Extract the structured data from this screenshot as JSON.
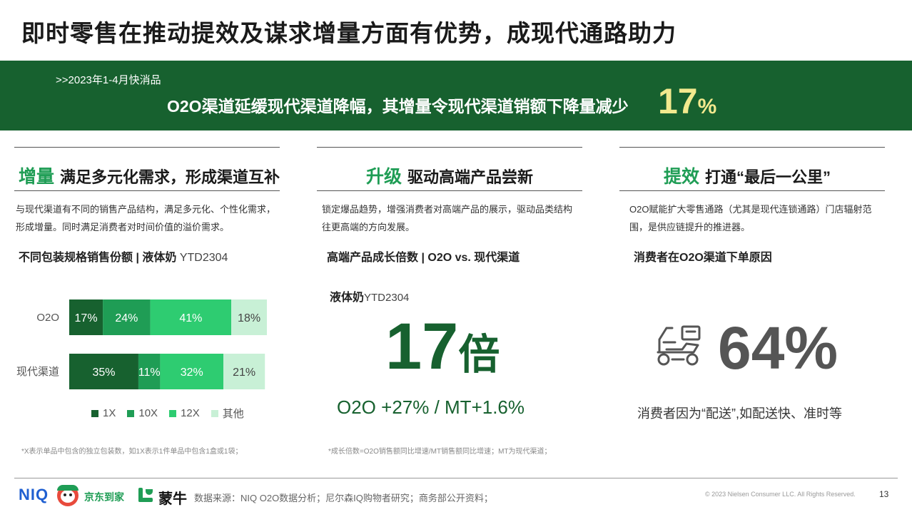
{
  "title": "即时零售在推动提效及谋求增量方面有优势，成现代通路助力",
  "banner": {
    "sub": ">>2023年1-4月快消品",
    "main": "O2O渠道延缓现代渠道降幅，其增量令现代渠道销额下降量减少",
    "pct_num": "17",
    "pct_sign": "%"
  },
  "col1": {
    "keyword": "增量",
    "heading": "满足多元化需求，形成渠道互补",
    "desc": "与现代渠道有不同的销售产品结构，满足多元化、个性化需求，形成增量。同时满足消费者对时间价值的溢价需求。",
    "subhead_bold": "不同包装规格销售份额 | 液体奶",
    "subhead_light": " YTD2304",
    "note": "*X表示单品中包含的独立包装数，如1X表示1件单品中包含1盒或1袋；"
  },
  "col2": {
    "keyword": "升级",
    "heading": "驱动高端产品尝新",
    "desc": "锁定爆品趋势，增强消费者对高端产品的展示，驱动品类结构往更高端的方向发展。",
    "subhead": "高端产品成长倍数 | O2O vs. 现代渠道",
    "product_bold": "液体奶",
    "product_light": "YTD2304",
    "big_num": "17",
    "big_unit": "倍",
    "growth": "O2O +27% / MT+1.6%",
    "note": "*成长倍数=O2O销售额同比增速/MT销售额同比增速；MT为现代渠道；"
  },
  "col3": {
    "keyword": "提效",
    "heading": "打通“最后一公里”",
    "desc": "O2O赋能扩大零售通路（尤其是现代连锁通路）门店辐射范围，是供应链提升的推进器。",
    "subhead": "消费者在O2O渠道下单原因",
    "icon": "delivery-scooter-icon",
    "big_pct": "64%",
    "reason": "消费者因为“配送”,如配送快、准时等"
  },
  "chart_data": {
    "type": "bar",
    "orientation": "horizontal",
    "stacked": true,
    "categories": [
      "O2O",
      "现代渠道"
    ],
    "series": [
      {
        "name": "1X",
        "values": [
          17,
          35
        ],
        "labels": [
          "17%",
          "35%"
        ],
        "color": "#17612f"
      },
      {
        "name": "10X",
        "values": [
          24,
          11
        ],
        "labels": [
          "24%",
          "11%"
        ],
        "color": "#1f9d55"
      },
      {
        "name": "12X",
        "values": [
          41,
          32
        ],
        "labels": [
          "41%",
          "32%"
        ],
        "color": "#2ecc71"
      },
      {
        "name": "其他",
        "values": [
          18,
          21
        ],
        "labels": [
          "18%",
          "21%"
        ],
        "color": "#c8f0d6"
      }
    ],
    "xlim": [
      0,
      100
    ],
    "legend": "bottom"
  },
  "footer": {
    "logo_niq": "NIQ",
    "logo_jd": "京东到家",
    "logo_mn": "蒙牛",
    "source": "数据来源：NIQ O2O数据分析；尼尔森IQ购物者研究；商务部公开资料；",
    "copyright": "© 2023 Nielsen Consumer LLC. All Rights Reserved.",
    "page": "13"
  }
}
